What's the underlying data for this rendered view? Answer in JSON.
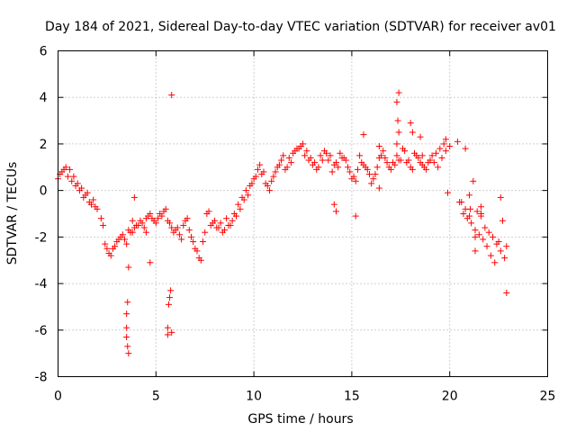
{
  "chart_data": {
    "type": "scatter",
    "title": "Day 184 of 2021, Sidereal Day-to-day VTEC variation (SDTVAR) for receiver av01",
    "xlabel": "GPS time / hours",
    "ylabel": "SDTVAR / TECUs",
    "xlim": [
      0,
      25
    ],
    "ylim": [
      -8,
      6
    ],
    "xticks": [
      0,
      5,
      10,
      15,
      20,
      25
    ],
    "yticks": [
      -8,
      -6,
      -4,
      -2,
      0,
      2,
      4,
      6
    ],
    "xtick_labels": [
      "0",
      "5",
      "10",
      "15",
      "20",
      "25"
    ],
    "ytick_labels": [
      "-8",
      "-6",
      "-4",
      "-2",
      "0",
      "2",
      "4",
      "6"
    ],
    "grid": true,
    "marker": "+",
    "color": "#ff0000",
    "series": [
      {
        "name": "SDTVAR",
        "x": [
          0.0,
          0.2,
          0.4,
          0.6,
          0.8,
          1.0,
          1.2,
          1.4,
          1.6,
          1.8,
          2.0,
          2.2,
          2.4,
          2.6,
          2.8,
          3.0,
          3.2,
          3.4,
          3.6,
          3.8,
          4.0,
          4.2,
          4.4,
          4.6,
          4.8,
          5.0,
          5.2,
          5.4,
          5.6,
          5.8,
          6.0,
          6.2,
          6.4,
          6.6,
          6.8,
          7.0,
          7.2,
          7.4,
          7.6,
          7.8,
          8.0,
          8.2,
          8.4,
          8.6,
          8.8,
          9.0,
          9.2,
          9.4,
          9.6,
          9.8,
          10.0,
          10.2,
          10.4,
          10.6,
          10.8,
          11.0,
          11.2,
          11.4,
          11.6,
          11.8,
          12.0,
          12.2,
          12.4,
          12.6,
          12.8,
          13.0,
          13.2,
          13.4,
          13.6,
          13.8,
          14.0,
          14.2,
          14.4,
          14.6,
          14.8,
          15.0,
          15.2,
          15.4,
          15.6,
          15.8,
          16.0,
          16.2,
          16.4,
          16.6,
          16.8,
          17.0,
          17.2,
          17.4,
          17.6,
          17.8,
          18.0,
          18.2,
          18.4,
          18.6,
          18.8,
          19.0,
          19.2,
          19.4,
          19.6,
          19.8,
          20.0,
          20.4,
          20.6,
          20.8,
          21.0,
          21.2,
          21.4,
          21.6,
          21.8,
          22.0,
          22.2,
          22.4,
          22.6,
          22.8,
          0.1,
          0.3,
          0.5,
          0.7,
          0.9,
          1.1,
          1.3,
          1.5,
          1.7,
          1.9,
          2.3,
          2.5,
          2.7,
          2.9,
          3.1,
          3.3,
          3.5,
          3.7,
          3.9,
          4.1,
          4.3,
          4.5,
          4.7,
          4.9,
          5.1,
          5.3,
          5.5,
          5.7,
          5.9,
          6.1,
          6.3,
          6.5,
          6.7,
          6.9,
          7.1,
          7.3,
          7.5,
          7.7,
          7.9,
          8.1,
          8.3,
          8.5,
          8.7,
          8.9,
          9.1,
          9.3,
          9.5,
          9.7,
          9.9,
          10.1,
          10.3,
          10.5,
          10.7,
          10.9,
          11.1,
          11.3,
          11.5,
          11.7,
          11.9,
          12.1,
          12.3,
          12.5,
          12.7,
          12.9,
          13.1,
          13.3,
          13.5,
          13.7,
          13.9,
          14.1,
          14.3,
          14.5,
          14.7,
          14.9,
          15.1,
          15.3,
          15.5,
          15.7,
          15.9,
          16.1,
          16.3,
          16.5,
          16.7,
          16.9,
          17.1,
          17.3,
          17.5,
          17.7,
          17.9,
          18.1,
          18.3,
          18.5,
          18.7,
          18.9,
          19.1,
          19.3,
          19.5,
          19.7,
          19.9,
          20.5,
          20.7,
          20.9,
          21.1,
          21.3,
          21.5,
          21.7,
          21.9,
          22.1,
          22.3,
          22.5,
          22.7,
          22.9,
          3.5,
          3.5,
          3.5,
          3.55,
          3.55,
          3.6,
          3.6,
          5.6,
          5.6,
          5.65,
          5.7,
          5.75,
          5.8,
          5.8,
          17.3,
          17.35,
          17.4,
          17.4,
          17.3,
          18.0,
          18.1,
          18.5,
          18.6,
          21.0,
          21.05,
          21.3,
          21.3,
          21.6,
          21.6,
          14.1,
          14.2,
          15.2,
          15.6,
          16.4,
          16.4,
          22.6,
          22.9,
          3.8,
          3.9,
          4.5,
          4.7,
          19.8,
          20.8
        ],
        "y": [
          0.5,
          0.8,
          1.0,
          0.9,
          0.6,
          0.3,
          0.1,
          -0.2,
          -0.5,
          -0.4,
          -0.8,
          -1.2,
          -2.3,
          -2.7,
          -2.5,
          -2.2,
          -2.0,
          -2.1,
          -1.7,
          -1.8,
          -1.5,
          -1.3,
          -1.6,
          -1.1,
          -1.2,
          -1.4,
          -1.0,
          -0.9,
          -1.3,
          -1.6,
          -1.7,
          -1.9,
          -1.5,
          -1.2,
          -2.0,
          -2.5,
          -2.9,
          -2.2,
          -1.0,
          -1.5,
          -1.3,
          -1.6,
          -1.8,
          -1.2,
          -1.5,
          -1.0,
          -0.6,
          -0.3,
          0.0,
          0.2,
          0.5,
          0.9,
          0.7,
          0.3,
          0.0,
          0.6,
          1.0,
          1.3,
          0.9,
          1.4,
          1.6,
          1.8,
          1.9,
          1.5,
          1.3,
          1.1,
          0.9,
          1.5,
          1.7,
          1.3,
          0.8,
          1.2,
          1.6,
          1.4,
          1.0,
          0.5,
          0.4,
          1.5,
          1.1,
          0.9,
          0.3,
          0.7,
          1.4,
          1.7,
          1.2,
          0.9,
          1.1,
          1.3,
          1.8,
          1.2,
          1.0,
          1.6,
          1.4,
          1.1,
          0.9,
          1.3,
          1.2,
          1.0,
          1.4,
          1.7,
          1.9,
          2.1,
          -0.5,
          -0.8,
          -0.2,
          0.4,
          -0.9,
          -1.1,
          -1.6,
          -1.8,
          -2.0,
          -2.3,
          -2.6,
          -2.9,
          0.7,
          0.9,
          0.6,
          0.4,
          0.2,
          0.0,
          -0.3,
          -0.1,
          -0.6,
          -0.7,
          -1.5,
          -2.5,
          -2.8,
          -2.4,
          -2.1,
          -1.9,
          -2.3,
          -1.8,
          -1.6,
          -1.5,
          -1.4,
          -1.2,
          -1.0,
          -1.3,
          -1.2,
          -1.1,
          -0.8,
          -1.4,
          -1.8,
          -1.6,
          -2.1,
          -1.3,
          -1.7,
          -2.2,
          -2.6,
          -3.0,
          -1.8,
          -0.9,
          -1.4,
          -1.6,
          -1.4,
          -1.7,
          -1.5,
          -1.3,
          -1.1,
          -0.8,
          -0.4,
          -0.2,
          0.3,
          0.6,
          1.1,
          0.8,
          0.2,
          0.4,
          0.8,
          1.1,
          1.5,
          1.0,
          1.2,
          1.7,
          1.8,
          2.0,
          1.7,
          1.4,
          1.2,
          1.0,
          1.3,
          1.6,
          1.5,
          1.1,
          1.0,
          1.4,
          1.3,
          0.8,
          0.6,
          0.9,
          1.2,
          1.0,
          0.7,
          0.5,
          1.0,
          1.5,
          1.4,
          1.0,
          1.2,
          1.5,
          1.3,
          1.7,
          1.3,
          0.9,
          1.5,
          1.2,
          1.0,
          1.2,
          1.5,
          1.6,
          1.8,
          2.0,
          -0.1,
          -0.5,
          -1.0,
          -1.2,
          -1.4,
          -1.7,
          -1.9,
          -2.1,
          -2.4,
          -2.8,
          -3.1,
          -2.2,
          -1.3,
          -4.4,
          -5.3,
          -5.9,
          -6.3,
          -6.7,
          -4.8,
          -3.3,
          -7.0,
          -6.2,
          -5.9,
          -4.9,
          -4.6,
          -4.3,
          -6.1,
          4.1,
          3.8,
          3.0,
          2.5,
          4.2,
          2.0,
          2.9,
          2.5,
          2.3,
          1.5,
          -1.1,
          -0.8,
          -2.0,
          -2.6,
          -0.7,
          -1.0,
          -0.6,
          -0.9,
          -1.1,
          2.4,
          1.9,
          0.1,
          -0.3,
          -2.4,
          -1.3,
          -0.3,
          -1.8,
          -3.1,
          2.2,
          1.8
        ]
      }
    ]
  }
}
